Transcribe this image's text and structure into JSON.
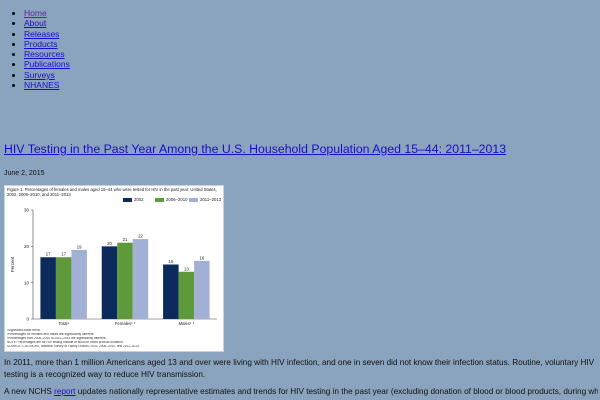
{
  "nav": {
    "items": [
      {
        "label": "Home"
      },
      {
        "label": "About"
      },
      {
        "label": "Releases"
      },
      {
        "label": "Products"
      },
      {
        "label": "Resources"
      },
      {
        "label": "Publications"
      },
      {
        "label": "Surveys"
      },
      {
        "label": "NHANES"
      }
    ]
  },
  "post": {
    "title": "HIV Testing in the Past Year Among the U.S. Household Population Aged 15–44: 2011–2013",
    "date": "June 2, 2015"
  },
  "figure": {
    "caption": "Figure 1. Percentages of females and males aged 15–44 who were tested for HIV in the past year: United States, 2002, 2006–2010, and 2011–2013",
    "notes": [
      "¹Significant linear trend.",
      "²Percentages for females and males are significantly different.",
      "³Percentages from 2006–2010 to 2011–2013 are significantly different.",
      "NOTE: Percentages are for HIV testing outside of blood or blood product donation.",
      "SOURCE: CDC/NCHS, National Survey of Family Growth, 2002, 2006–2010, and 2011–2013."
    ]
  },
  "chart_data": {
    "type": "bar",
    "title": "",
    "ylabel": "Percent",
    "ylim": [
      0,
      30
    ],
    "yticks": [
      0,
      10,
      20,
      30
    ],
    "categories": [
      "Total¹",
      "Females¹ ²",
      "Males¹ ³"
    ],
    "series": [
      {
        "name": "2002",
        "color": "#0d2a5c",
        "values": [
          17,
          20,
          15
        ],
        "labels": [
          "17",
          "20",
          "15"
        ]
      },
      {
        "name": "2006–2010",
        "color": "#5e9a3a",
        "values": [
          17,
          21,
          13
        ],
        "labels": [
          "17",
          "21",
          "13"
        ]
      },
      {
        "name": "2011–2013",
        "color": "#a3b0d6",
        "values": [
          19,
          22,
          16
        ],
        "labels": [
          "19",
          "22",
          "16"
        ]
      }
    ],
    "legend": "top-right",
    "grid": false
  },
  "body": {
    "p1": "In 2011, more than 1 million Americans aged 13 and over were living with HIV infection, and one in seven did not know their infection status. Routine, voluntary HIV testing is a recognized way to reduce HIV transmission.",
    "p2_before": "A new NCHS ",
    "p2_link": "report",
    "p2_after": " updates nationally representative estimates and trends for HIV testing in the past year (excluding donation of blood or blood products, during which"
  }
}
